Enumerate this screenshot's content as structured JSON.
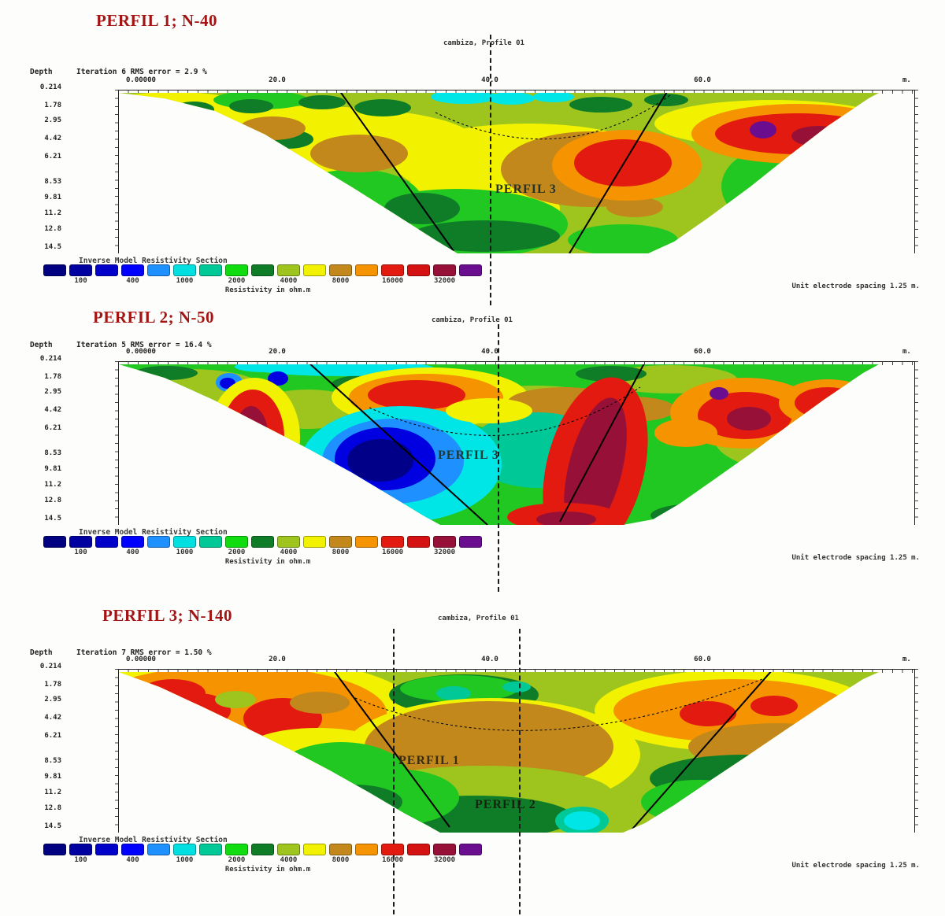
{
  "figure": {
    "depth_axis_label": "Depth",
    "x_origin": "0.00000",
    "x_unit": "m.",
    "x_ticks": [
      "20.0",
      "40.0",
      "60.0"
    ],
    "depth_ticks": [
      "0.214",
      "1.78",
      "2.95",
      "4.42",
      "6.21",
      "8.53",
      "9.81",
      "11.2",
      "12.8",
      "14.5"
    ],
    "legend_title": "Inverse Model Resistivity Section",
    "legend_unit": "Resistivity in ohm.m",
    "legend_values": [
      "100",
      "400",
      "1000",
      "2000",
      "4000",
      "8000",
      "16000",
      "32000"
    ],
    "legend_colors": [
      "#000080",
      "#0000A0",
      "#0000C8",
      "#0000FF",
      "#1E90FF",
      "#00E0E0",
      "#00C896",
      "#10DC10",
      "#0F7D28",
      "#9DC51E",
      "#F2F200",
      "#C3881B",
      "#F59300",
      "#E31A0F",
      "#D51212",
      "#971038",
      "#6A0D8F"
    ],
    "unit_note": "Unit electrode spacing 1.25 m."
  },
  "panels": [
    {
      "title": "PERFIL 1; N-40",
      "site_label": "cambiza, Profile 01",
      "iteration": "Iteration 6 RMS error = 2.9 %",
      "section_labels": [
        "PERFIL 3"
      ]
    },
    {
      "title": "PERFIL 2; N-50",
      "site_label": "cambiza, Profile 01",
      "iteration": "Iteration 5 RMS error = 16.4 %",
      "section_labels": [
        "PERFIL 3"
      ]
    },
    {
      "title": "PERFIL 3; N-140",
      "site_label": "cambiza, Profile 01",
      "iteration": "Iteration 7 RMS error = 1.50 %",
      "section_labels": [
        "PERFIL 1",
        "PERFIL 2"
      ]
    }
  ],
  "chart_data": [
    {
      "type": "heatmap",
      "title": "PERFIL 1; N-40",
      "site": "cambiza, Profile 01",
      "stats": "Iteration 6 RMS error = 2.9 %",
      "xlabel": "m.",
      "x_ticks": [
        0.0,
        20.0,
        40.0,
        60.0
      ],
      "x_origin_label": "0.00000",
      "ylabel": "Depth",
      "depth_ticks_m": [
        0.214,
        1.78,
        2.95,
        4.42,
        6.21,
        8.53,
        9.81,
        11.2,
        12.8,
        14.5
      ],
      "colorbar": {
        "title": "Inverse Model Resistivity Section",
        "unit": "Resistivity in ohm.m",
        "tick_values": [
          100,
          400,
          1000,
          2000,
          4000,
          8000,
          16000,
          32000
        ],
        "scale": "log"
      },
      "annotations": [
        "PERFIL 3",
        "dashed survey-crossing line near 40.0 m",
        "two solid fault lines forming a V under 25-55 m"
      ],
      "description": "Inverted trapezoid resistivity section: yellow-green background, brown high-resistivity lenses left-center, large red-orange anomaly with purple spot right of center, cyan low patches at top-center and right flank, dark green bands at depth.",
      "notes": "Unit electrode spacing 1.25 m."
    },
    {
      "type": "heatmap",
      "title": "PERFIL 2; N-50",
      "site": "cambiza, Profile 01",
      "stats": "Iteration 5 RMS error = 16.4 %",
      "xlabel": "m.",
      "x_ticks": [
        0.0,
        20.0,
        40.0,
        60.0
      ],
      "x_origin_label": "0.00000",
      "ylabel": "Depth",
      "depth_ticks_m": [
        0.214,
        1.78,
        2.95,
        4.42,
        6.21,
        8.53,
        9.81,
        11.2,
        12.8,
        14.5
      ],
      "colorbar": {
        "title": "Inverse Model Resistivity Section",
        "unit": "Resistivity in ohm.m",
        "tick_values": [
          100,
          400,
          1000,
          2000,
          4000,
          8000,
          16000,
          32000
        ],
        "scale": "log"
      },
      "annotations": [
        "PERFIL 3",
        "dashed survey-crossing line near 40.0 m",
        "two solid fault lines converging toward section bottom"
      ],
      "description": "Green-dominated section with a large blue/navy conductive body (cyan halo) at 20-35 m depth zone, red-to-maroon resistive diagonal band right of center, red anomalies on both flanks and small blue spots near surface left.",
      "notes": "Unit electrode spacing 1.25 m."
    },
    {
      "type": "heatmap",
      "title": "PERFIL 3; N-140",
      "site": "cambiza, Profile 01",
      "stats": "Iteration 7 RMS error = 1.50 %",
      "xlabel": "m.",
      "x_ticks": [
        0.0,
        20.0,
        40.0,
        60.0
      ],
      "x_origin_label": "0.00000",
      "ylabel": "Depth",
      "depth_ticks_m": [
        0.214,
        1.78,
        2.95,
        4.42,
        6.21,
        8.53,
        9.81,
        11.2,
        12.8,
        14.5
      ],
      "colorbar": {
        "title": "Inverse Model Resistivity Section",
        "unit": "Resistivity in ohm.m",
        "tick_values": [
          100,
          400,
          1000,
          2000,
          4000,
          8000,
          16000,
          32000
        ],
        "scale": "log"
      },
      "annotations": [
        "PERFIL 1",
        "PERFIL 2",
        "two vertical dashed crossing lines near 27 m and 40 m",
        "two solid fault lines bounding the central block"
      ],
      "description": "Orange-red resistive cap on the left flank with small purple spot, large central brown (high resistivity) body labelled PERFIL 1 over yellow and dark-green bands labelled PERFIL 2, orange-red band with brown and dark green layers on the right flank, cyan pocket at bottom center-right.",
      "notes": "Unit electrode spacing 1.25 m."
    }
  ]
}
